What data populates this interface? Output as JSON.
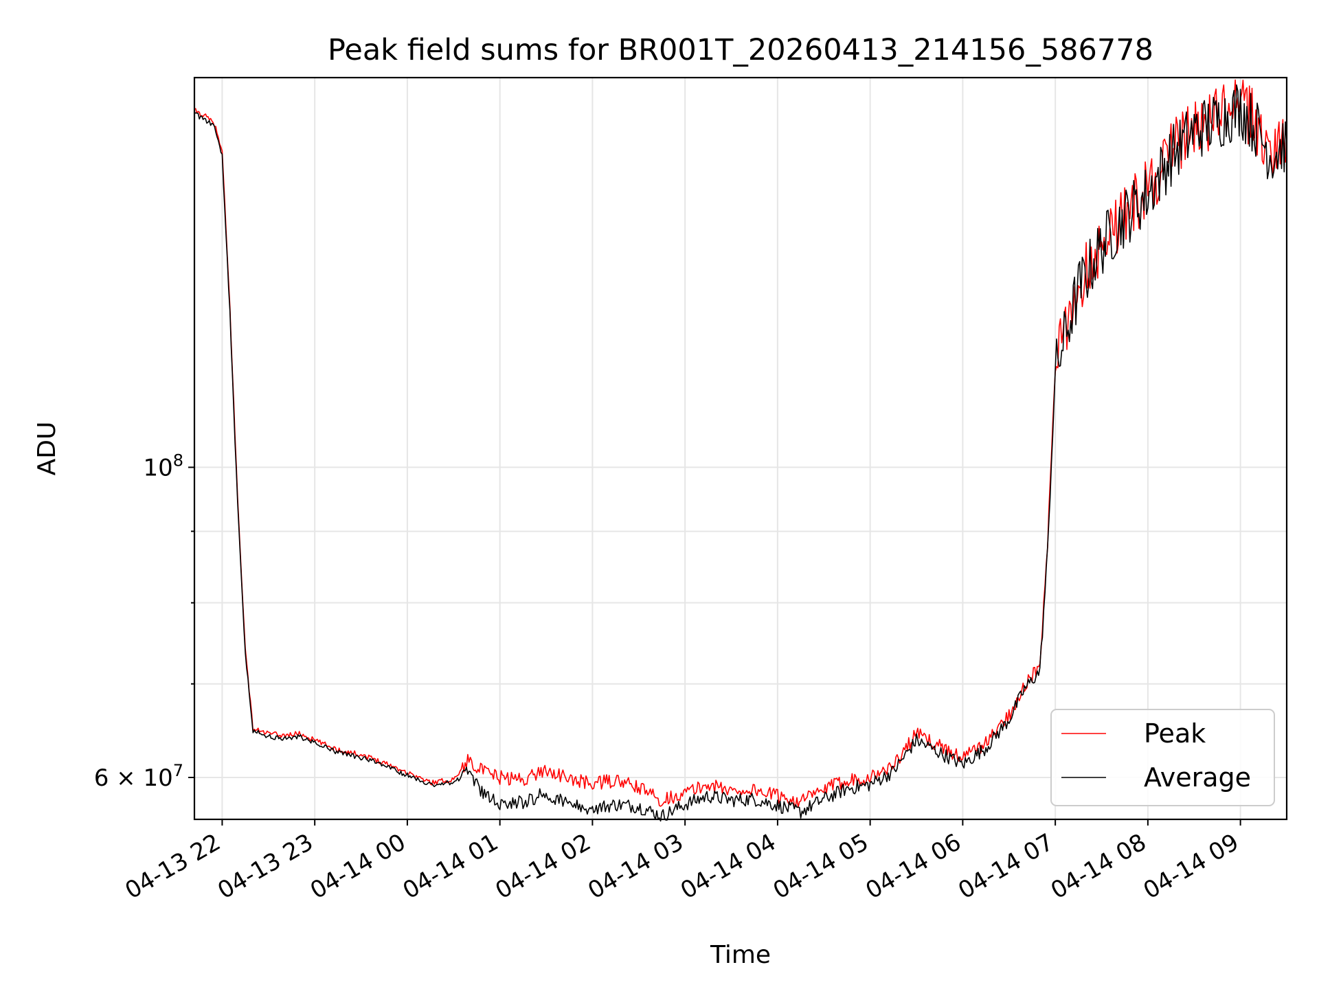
{
  "chart_data": {
    "type": "line",
    "title": "Peak field sums for BR001T_20260413_214156_586778",
    "xlabel": "Time",
    "ylabel": "ADU",
    "yscale": "log",
    "grid": true,
    "legend_position": "lower-right",
    "x_ticks": [
      "04-13 22",
      "04-13 23",
      "04-14 00",
      "04-14 01",
      "04-14 02",
      "04-14 03",
      "04-14 04",
      "04-14 05",
      "04-14 06",
      "04-14 07",
      "04-14 08",
      "04-14 09"
    ],
    "y_ticks": [
      {
        "value": 100000000,
        "label": "10^8"
      },
      {
        "value": 60000000,
        "label": "6 × 10^7"
      }
    ],
    "xlim": [
      "04-13 21:42",
      "04-14 09:30"
    ],
    "ylim": [
      56000000,
      190000000
    ],
    "series": [
      {
        "name": "Peak",
        "color": "#ff0000",
        "points": [
          [
            "04-13 21:42",
            180000000
          ],
          [
            "04-13 21:50",
            178000000
          ],
          [
            "04-13 21:55",
            176000000
          ],
          [
            "04-13 22:00",
            168000000
          ],
          [
            "04-13 22:05",
            130000000
          ],
          [
            "04-13 22:10",
            95000000
          ],
          [
            "04-13 22:15",
            74000000
          ],
          [
            "04-13 22:20",
            65000000
          ],
          [
            "04-13 22:30",
            64500000
          ],
          [
            "04-13 22:40",
            64300000
          ],
          [
            "04-13 22:50",
            64500000
          ],
          [
            "04-13 23:00",
            63800000
          ],
          [
            "04-13 23:15",
            62800000
          ],
          [
            "04-13 23:30",
            62300000
          ],
          [
            "04-13 23:45",
            61500000
          ],
          [
            "04-14 00:00",
            60500000
          ],
          [
            "04-14 00:15",
            59500000
          ],
          [
            "04-14 00:30",
            59800000
          ],
          [
            "04-14 00:40",
            61800000
          ],
          [
            "04-14 00:50",
            60500000
          ],
          [
            "04-14 01:00",
            60000000
          ],
          [
            "04-14 01:15",
            59800000
          ],
          [
            "04-14 01:30",
            60800000
          ],
          [
            "04-14 01:45",
            59800000
          ],
          [
            "04-14 02:00",
            59400000
          ],
          [
            "04-14 02:15",
            59700000
          ],
          [
            "04-14 02:30",
            59000000
          ],
          [
            "04-14 02:45",
            57800000
          ],
          [
            "04-14 03:00",
            58500000
          ],
          [
            "04-14 03:15",
            59300000
          ],
          [
            "04-14 03:30",
            58700000
          ],
          [
            "04-14 03:45",
            58800000
          ],
          [
            "04-14 04:00",
            58200000
          ],
          [
            "04-14 04:15",
            57700000
          ],
          [
            "04-14 04:30",
            58800000
          ],
          [
            "04-14 04:45",
            59800000
          ],
          [
            "04-14 05:00",
            60000000
          ],
          [
            "04-14 05:15",
            61200000
          ],
          [
            "04-14 05:30",
            64500000
          ],
          [
            "04-14 05:45",
            63200000
          ],
          [
            "04-14 06:00",
            62000000
          ],
          [
            "04-14 06:15",
            63500000
          ],
          [
            "04-14 06:30",
            66500000
          ],
          [
            "04-14 06:40",
            69800000
          ],
          [
            "04-14 06:50",
            72000000
          ],
          [
            "04-14 06:55",
            88000000
          ],
          [
            "04-14 07:00",
            118000000
          ],
          [
            "04-14 07:15",
            135000000
          ],
          [
            "04-14 07:30",
            145000000
          ],
          [
            "04-14 07:45",
            152000000
          ],
          [
            "04-14 08:00",
            158000000
          ],
          [
            "04-14 08:15",
            168000000
          ],
          [
            "04-14 08:30",
            175000000
          ],
          [
            "04-14 08:45",
            178000000
          ],
          [
            "04-14 09:00",
            182000000
          ],
          [
            "04-14 09:10",
            176000000
          ],
          [
            "04-14 09:20",
            168000000
          ],
          [
            "04-14 09:30",
            172000000
          ]
        ]
      },
      {
        "name": "Average",
        "color": "#000000",
        "points": [
          [
            "04-13 21:42",
            179000000
          ],
          [
            "04-13 21:50",
            177000000
          ],
          [
            "04-13 21:55",
            175000000
          ],
          [
            "04-13 22:00",
            167000000
          ],
          [
            "04-13 22:05",
            129000000
          ],
          [
            "04-13 22:10",
            94000000
          ],
          [
            "04-13 22:15",
            73500000
          ],
          [
            "04-13 22:20",
            64800000
          ],
          [
            "04-13 22:30",
            64200000
          ],
          [
            "04-13 22:40",
            64000000
          ],
          [
            "04-13 22:50",
            64200000
          ],
          [
            "04-13 23:00",
            63500000
          ],
          [
            "04-13 23:15",
            62500000
          ],
          [
            "04-13 23:30",
            62000000
          ],
          [
            "04-13 23:45",
            61200000
          ],
          [
            "04-14 00:00",
            60200000
          ],
          [
            "04-14 00:15",
            59300000
          ],
          [
            "04-14 00:30",
            59500000
          ],
          [
            "04-14 00:40",
            60500000
          ],
          [
            "04-14 00:50",
            58200000
          ],
          [
            "04-14 01:00",
            57500000
          ],
          [
            "04-14 01:15",
            57600000
          ],
          [
            "04-14 01:30",
            58500000
          ],
          [
            "04-14 01:45",
            57300000
          ],
          [
            "04-14 02:00",
            57000000
          ],
          [
            "04-14 02:15",
            57400000
          ],
          [
            "04-14 02:30",
            57200000
          ],
          [
            "04-14 02:45",
            56300000
          ],
          [
            "04-14 03:00",
            57400000
          ],
          [
            "04-14 03:15",
            58200000
          ],
          [
            "04-14 03:30",
            57800000
          ],
          [
            "04-14 03:45",
            57900000
          ],
          [
            "04-14 04:00",
            57300000
          ],
          [
            "04-14 04:15",
            56700000
          ],
          [
            "04-14 04:30",
            57900000
          ],
          [
            "04-14 04:45",
            58900000
          ],
          [
            "04-14 05:00",
            59300000
          ],
          [
            "04-14 05:15",
            60600000
          ],
          [
            "04-14 05:30",
            63800000
          ],
          [
            "04-14 05:45",
            62500000
          ],
          [
            "04-14 06:00",
            61300000
          ],
          [
            "04-14 06:15",
            63000000
          ],
          [
            "04-14 06:30",
            66000000
          ],
          [
            "04-14 06:40",
            69400000
          ],
          [
            "04-14 06:50",
            71500000
          ],
          [
            "04-14 06:55",
            87000000
          ],
          [
            "04-14 07:00",
            117000000
          ],
          [
            "04-14 07:15",
            134000000
          ],
          [
            "04-14 07:30",
            144000000
          ],
          [
            "04-14 07:45",
            151000000
          ],
          [
            "04-14 08:00",
            157000000
          ],
          [
            "04-14 08:15",
            167000000
          ],
          [
            "04-14 08:30",
            174000000
          ],
          [
            "04-14 08:45",
            177000000
          ],
          [
            "04-14 09:00",
            181000000
          ],
          [
            "04-14 09:10",
            175000000
          ],
          [
            "04-14 09:20",
            167000000
          ],
          [
            "04-14 09:30",
            171000000
          ]
        ]
      }
    ]
  }
}
